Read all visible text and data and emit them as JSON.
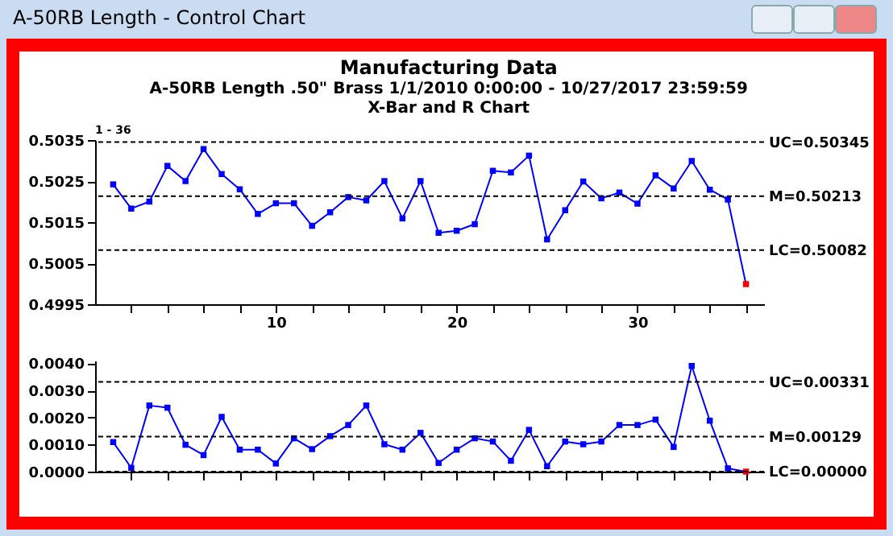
{
  "chart_data": [
    {
      "type": "line",
      "title": "Manufacturing Data",
      "subtitle": "A-50RB Length   .50\" Brass   1/1/2010 0:00:00 - 10/27/2017 23:59:59",
      "annotations": [
        "A-50RB Length - Control Chart",
        "X-Bar and R Chart",
        "1 - 36"
      ],
      "x": [
        1,
        2,
        3,
        4,
        5,
        6,
        7,
        8,
        9,
        10,
        11,
        12,
        13,
        14,
        15,
        16,
        17,
        18,
        19,
        20,
        21,
        22,
        23,
        24,
        25,
        26,
        27,
        28,
        29,
        30,
        31,
        32,
        33,
        34,
        35,
        36
      ],
      "series": [
        {
          "color": "#0000ff",
          "colors": [
            "#0000ff",
            "#0000ff",
            "#0000ff",
            "#0000ff",
            "#0000ff",
            "#0000ff",
            "#0000ff",
            "#0000ff",
            "#0000ff",
            "#0000ff",
            "#0000ff",
            "#0000ff",
            "#0000ff",
            "#0000ff",
            "#0000ff",
            "#0000ff",
            "#0000ff",
            "#0000ff",
            "#0000ff",
            "#0000ff",
            "#0000ff",
            "#0000ff",
            "#0000ff",
            "#0000ff",
            "#0000ff",
            "#0000ff",
            "#0000ff",
            "#0000ff",
            "#0000ff",
            "#0000ff",
            "#0000ff",
            "#0000ff",
            "#0000ff",
            "#0000ff",
            "#0000ff",
            "#ff0000"
          ],
          "values": [
            0.50242,
            0.50183,
            0.502,
            0.50287,
            0.5025,
            0.50328,
            0.50267,
            0.5023,
            0.5017,
            0.50196,
            0.50196,
            0.50141,
            0.50174,
            0.50211,
            0.50203,
            0.5025,
            0.50159,
            0.5025,
            0.50124,
            0.50129,
            0.50145,
            0.50275,
            0.50271,
            0.50312,
            0.50108,
            0.50179,
            0.50249,
            0.50208,
            0.50222,
            0.50195,
            0.50264,
            0.50232,
            0.50299,
            0.50229,
            0.50205,
            0.49999
          ]
        }
      ],
      "xlim": [
        0,
        37
      ],
      "xticks": [
        {
          "value": 2,
          "label": null
        },
        {
          "value": 4,
          "label": null
        },
        {
          "value": 6,
          "label": null
        },
        {
          "value": 8,
          "label": null
        },
        10,
        {
          "value": 12,
          "label": null
        },
        {
          "value": 14,
          "label": null
        },
        {
          "value": 16,
          "label": null
        },
        {
          "value": 18,
          "label": null
        },
        20,
        {
          "value": 22,
          "label": null
        },
        {
          "value": 24,
          "label": null
        },
        {
          "value": 26,
          "label": null
        },
        {
          "value": 28,
          "label": null
        },
        30,
        {
          "value": 32,
          "label": null
        },
        {
          "value": 34,
          "label": null
        },
        {
          "value": 36,
          "label": null
        }
      ],
      "ylim": [
        0.4995,
        0.5035
      ],
      "yticks": [
        0.4995,
        0.5005,
        0.5015,
        0.5025,
        0.5035
      ],
      "ref_lines": [
        {
          "axis": "y",
          "value": 0.50345,
          "label": "UC=0.50345",
          "color": "#000000",
          "line_style": "dashed"
        },
        {
          "axis": "y",
          "value": 0.50213,
          "label": "M=0.50213",
          "color": "#000000",
          "line_style": "dashed"
        },
        {
          "axis": "y",
          "value": 0.50082,
          "label": "LC=0.50082",
          "color": "#000000",
          "line_style": "dashed"
        }
      ],
      "marker": "square",
      "line_style": "solid",
      "grid": false
    },
    {
      "type": "line",
      "x": [
        1,
        2,
        3,
        4,
        5,
        6,
        7,
        8,
        9,
        10,
        11,
        12,
        13,
        14,
        15,
        16,
        17,
        18,
        19,
        20,
        21,
        22,
        23,
        24,
        25,
        26,
        27,
        28,
        29,
        30,
        31,
        32,
        33,
        34,
        35,
        36
      ],
      "series": [
        {
          "color": "#0000ff",
          "colors": [
            "#0000ff",
            "#0000ff",
            "#0000ff",
            "#0000ff",
            "#0000ff",
            "#0000ff",
            "#0000ff",
            "#0000ff",
            "#0000ff",
            "#0000ff",
            "#0000ff",
            "#0000ff",
            "#0000ff",
            "#0000ff",
            "#0000ff",
            "#0000ff",
            "#0000ff",
            "#0000ff",
            "#0000ff",
            "#0000ff",
            "#0000ff",
            "#0000ff",
            "#0000ff",
            "#0000ff",
            "#0000ff",
            "#0000ff",
            "#0000ff",
            "#0000ff",
            "#0000ff",
            "#0000ff",
            "#0000ff",
            "#0000ff",
            "#0000ff",
            "#0000ff",
            "#0000ff",
            "#ff0000"
          ],
          "values": [
            0.00109,
            0.00014,
            0.00244,
            0.00236,
            0.00099,
            0.00061,
            0.00202,
            0.00081,
            0.00081,
            0.0003,
            0.00123,
            0.00083,
            0.00131,
            0.00172,
            0.00244,
            0.00101,
            0.00081,
            0.00143,
            0.00032,
            0.00081,
            0.00123,
            0.00111,
            0.0004,
            0.00154,
            0.0002,
            0.00111,
            0.00101,
            0.00111,
            0.00172,
            0.00172,
            0.00192,
            0.00091,
            0.0039,
            0.00188,
            0.00012,
            0.0
          ]
        }
      ],
      "xlim": [
        0,
        37
      ],
      "xticks": [
        {
          "value": 2,
          "label": null
        },
        {
          "value": 4,
          "label": null
        },
        {
          "value": 6,
          "label": null
        },
        {
          "value": 8,
          "label": null
        },
        {
          "value": 10,
          "label": null
        },
        {
          "value": 12,
          "label": null
        },
        {
          "value": 14,
          "label": null
        },
        {
          "value": 16,
          "label": null
        },
        {
          "value": 18,
          "label": null
        },
        {
          "value": 20,
          "label": null
        },
        {
          "value": 22,
          "label": null
        },
        {
          "value": 24,
          "label": null
        },
        {
          "value": 26,
          "label": null
        },
        {
          "value": 28,
          "label": null
        },
        {
          "value": 30,
          "label": null
        },
        {
          "value": 32,
          "label": null
        },
        {
          "value": 34,
          "label": null
        },
        {
          "value": 36,
          "label": null
        }
      ],
      "ylim": [
        0,
        0.0041
      ],
      "yticks": [
        {
          "value": 0,
          "label": "0.0000"
        },
        {
          "value": 0.001,
          "label": "0.0010"
        },
        {
          "value": 0.002,
          "label": "0.0020"
        },
        {
          "value": 0.003,
          "label": "0.0030"
        },
        {
          "value": 0.004,
          "label": "0.0040"
        }
      ],
      "ref_lines": [
        {
          "axis": "y",
          "value": 0.00331,
          "label": "UC=0.00331",
          "color": "#000000",
          "line_style": "dashed"
        },
        {
          "axis": "y",
          "value": 0.00129,
          "label": "M=0.00129",
          "color": "#000000",
          "line_style": "dashed"
        },
        {
          "axis": "y",
          "value": 0,
          "label": "LC=0.00000",
          "color": "#000000",
          "line_style": "dashed"
        }
      ],
      "tick_labels": "y",
      "marker": "square",
      "line_style": "solid",
      "grid": false
    }
  ]
}
